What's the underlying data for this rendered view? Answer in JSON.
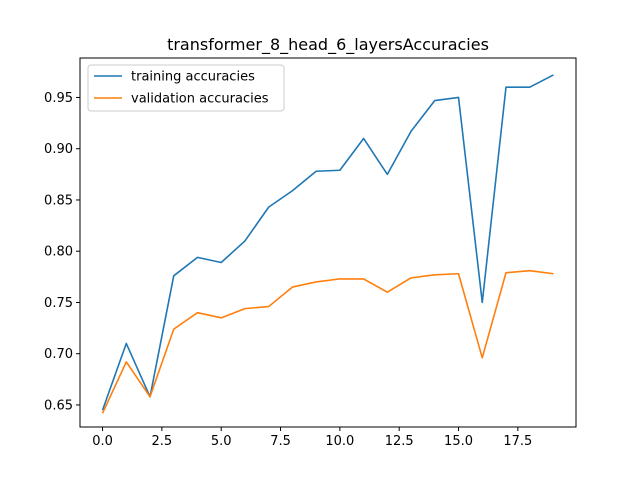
{
  "chart_data": {
    "type": "line",
    "title": "transformer_8_head_6_layersAccuracies",
    "xlabel": "",
    "ylabel": "",
    "x": [
      0,
      1,
      2,
      3,
      4,
      5,
      6,
      7,
      8,
      9,
      10,
      11,
      12,
      13,
      14,
      15,
      16,
      17,
      18,
      19
    ],
    "series": [
      {
        "name": "training accuracies",
        "color": "#1f77b4",
        "values": [
          0.645,
          0.71,
          0.658,
          0.776,
          0.794,
          0.789,
          0.81,
          0.843,
          0.859,
          0.878,
          0.879,
          0.91,
          0.875,
          0.917,
          0.947,
          0.95,
          0.75,
          0.96,
          0.96,
          0.972
        ]
      },
      {
        "name": "validation accuracies",
        "color": "#ff7f0e",
        "values": [
          0.642,
          0.692,
          0.658,
          0.724,
          0.74,
          0.735,
          0.744,
          0.746,
          0.765,
          0.77,
          0.773,
          0.773,
          0.76,
          0.774,
          0.777,
          0.778,
          0.696,
          0.779,
          0.781,
          0.778
        ]
      }
    ],
    "xlim": [
      -0.95,
      19.95
    ],
    "ylim": [
      0.6285,
      0.9885
    ],
    "xticks": [
      0,
      2.5,
      5,
      7.5,
      10,
      12.5,
      15,
      17.5
    ],
    "xtick_labels": [
      "0.0",
      "2.5",
      "5.0",
      "7.5",
      "10.0",
      "12.5",
      "15.0",
      "17.5"
    ],
    "yticks": [
      0.65,
      0.7,
      0.75,
      0.8,
      0.85,
      0.9,
      0.95
    ],
    "ytick_labels": [
      "0.65",
      "0.70",
      "0.75",
      "0.80",
      "0.85",
      "0.90",
      "0.95"
    ],
    "grid": false,
    "legend": "upper left"
  }
}
